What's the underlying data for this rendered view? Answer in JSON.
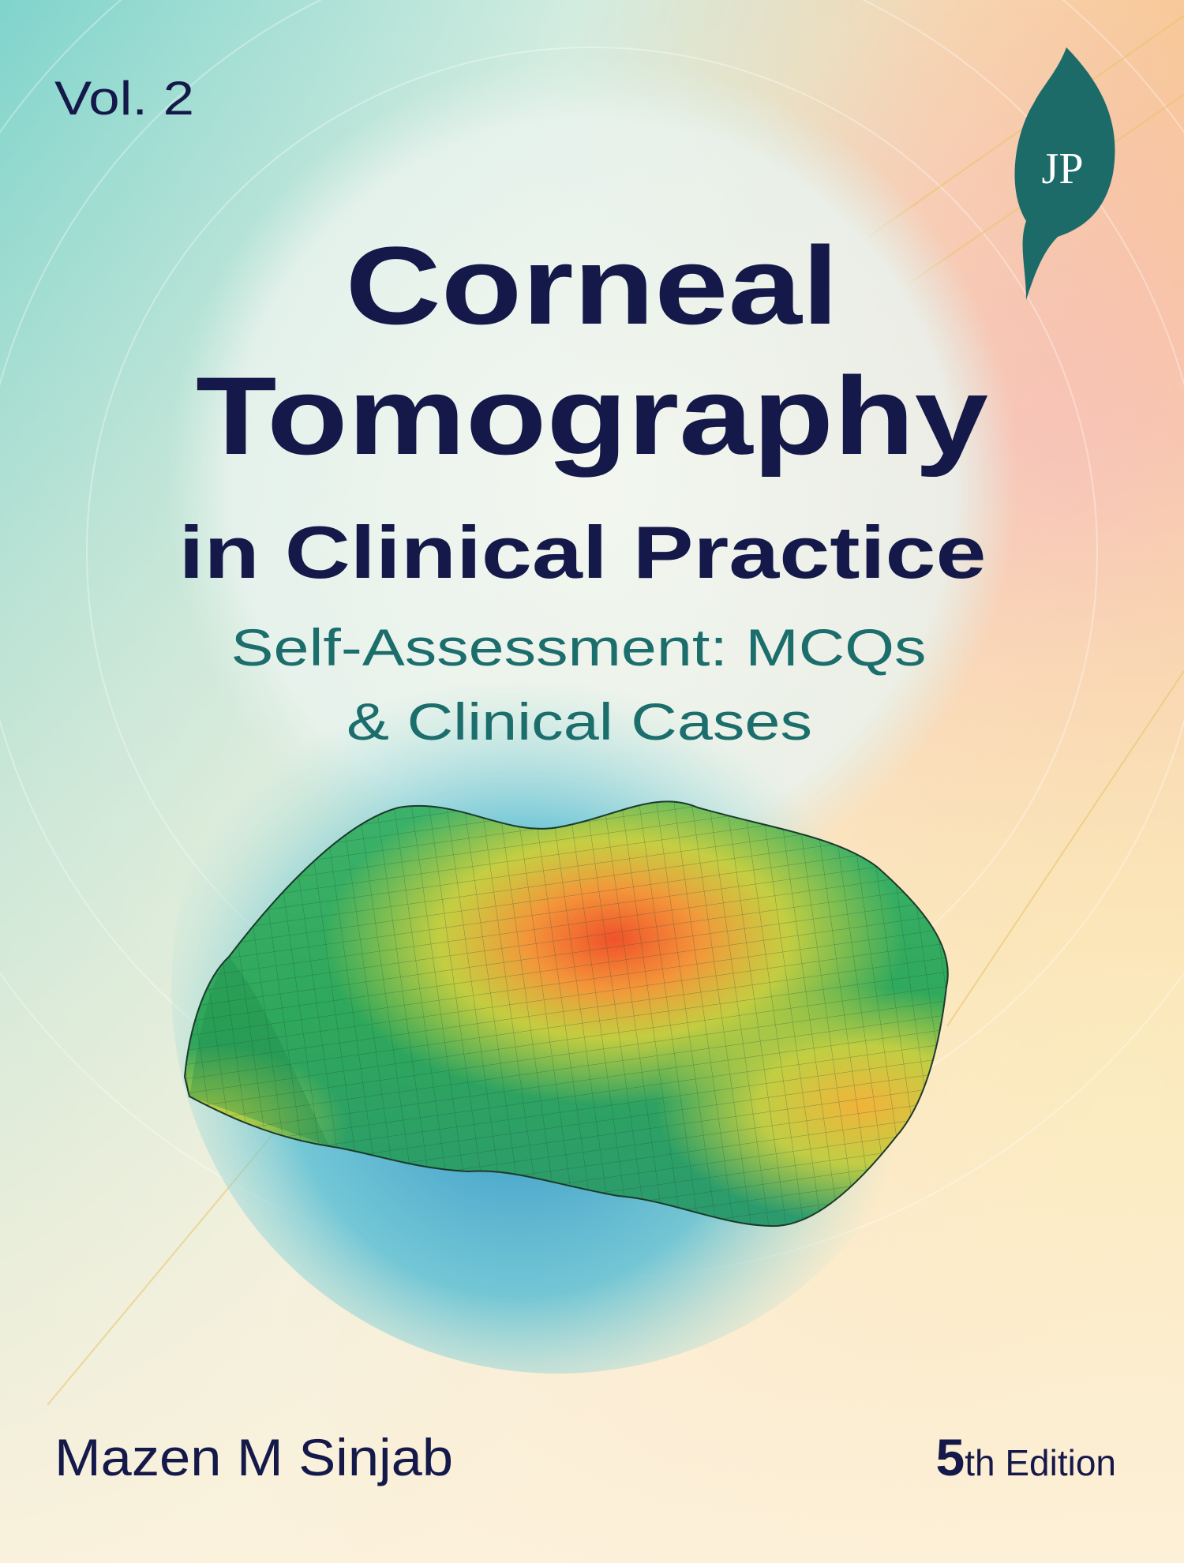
{
  "cover": {
    "volume": "Vol. 2",
    "publisher_logo": "JP",
    "title_lines": [
      "Corneal",
      "Tomography",
      "in Clinical Practice"
    ],
    "subtitle_lines": [
      "Self-Assessment: MCQs",
      "& Clinical Cases"
    ],
    "author": "Mazen M Sinjab",
    "edition": {
      "number": "5",
      "suffix": "th Edition"
    }
  }
}
